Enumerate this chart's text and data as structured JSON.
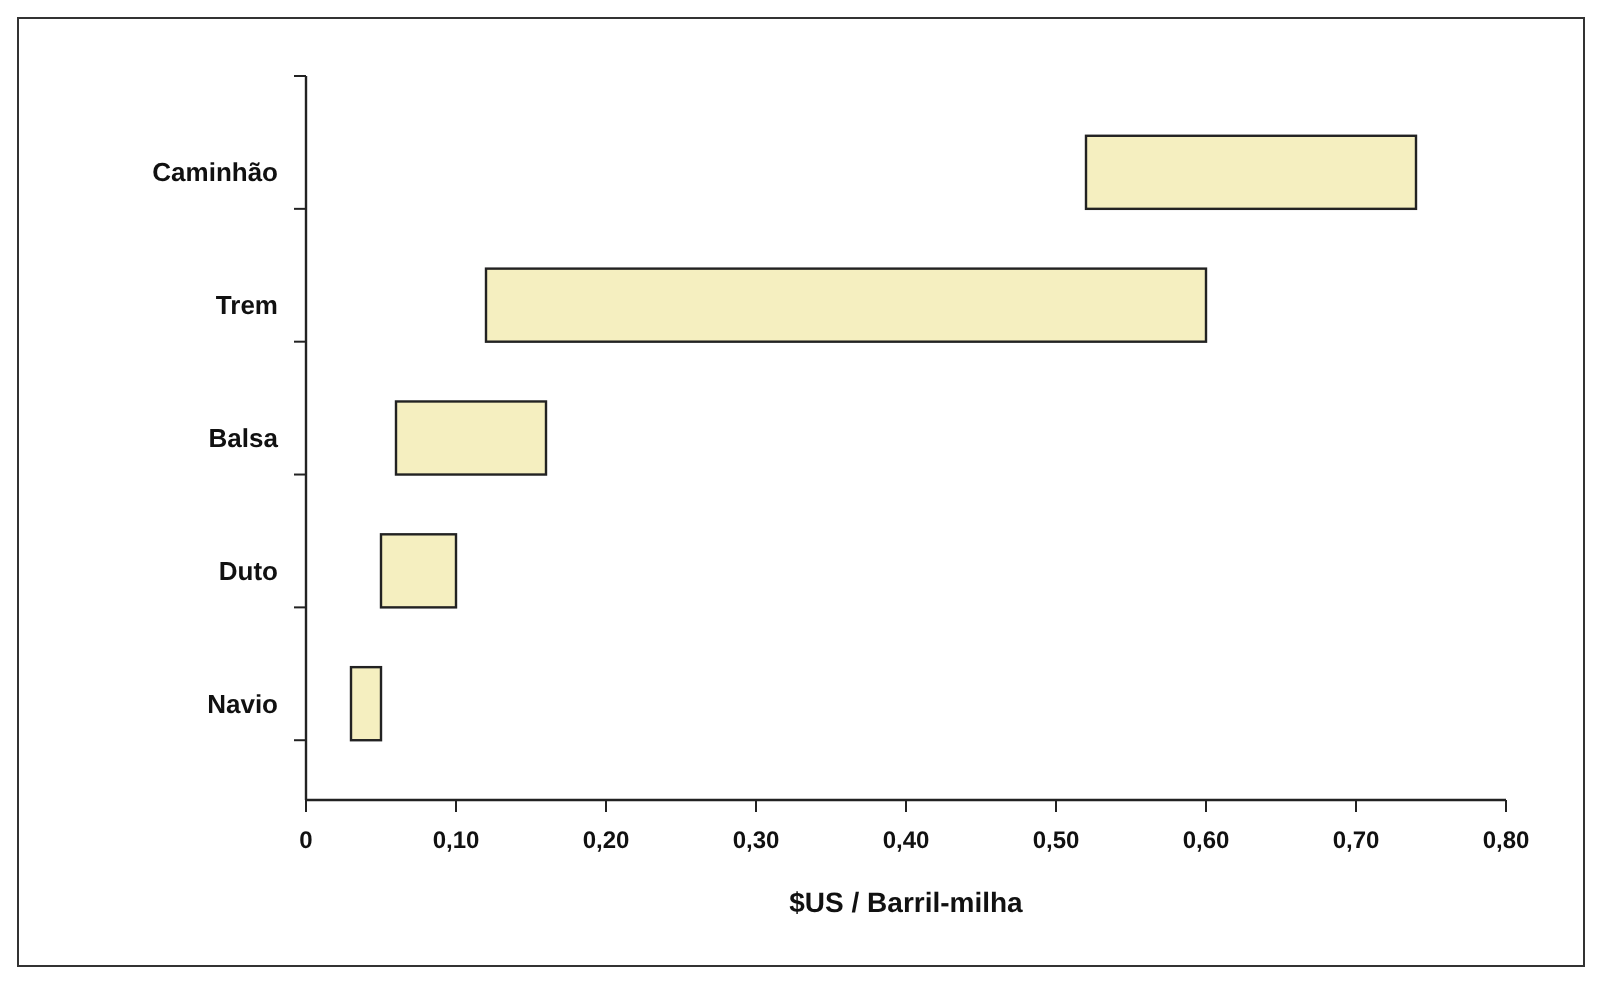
{
  "chart_data": {
    "type": "bar",
    "orientation": "horizontal",
    "xlabel": "$US / Barril-milha",
    "categories": [
      "Caminhão",
      "Trem",
      "Balsa",
      "Duto",
      "Navio"
    ],
    "base": [
      0.52,
      0.12,
      0.06,
      0.05,
      0.03
    ],
    "values": [
      0.22,
      0.48,
      0.1,
      0.05,
      0.02
    ],
    "color": "#f5efc0",
    "xlim": [
      0,
      0.8
    ],
    "xticks": [
      0,
      {
        "value": 0.1,
        "label": "0,10"
      },
      {
        "value": 0.2,
        "label": "0,20"
      },
      {
        "value": 0.3,
        "label": "0,30"
      },
      {
        "value": 0.4,
        "label": "0,40"
      },
      {
        "value": 0.5,
        "label": "0,50"
      },
      {
        "value": 0.6,
        "label": "0,60"
      },
      {
        "value": 0.7,
        "label": "0,70"
      },
      {
        "value": 0.8,
        "label": "0,80"
      }
    ],
    "grid": false
  }
}
